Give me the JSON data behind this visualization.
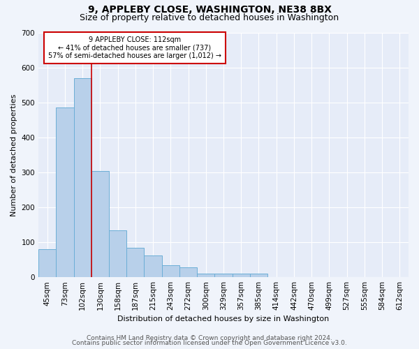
{
  "title1": "9, APPLEBY CLOSE, WASHINGTON, NE38 8BX",
  "title2": "Size of property relative to detached houses in Washington",
  "xlabel": "Distribution of detached houses by size in Washington",
  "ylabel": "Number of detached properties",
  "footnote1": "Contains HM Land Registry data © Crown copyright and database right 2024.",
  "footnote2": "Contains public sector information licensed under the Open Government Licence v3.0.",
  "bin_labels": [
    "45sqm",
    "73sqm",
    "102sqm",
    "130sqm",
    "158sqm",
    "187sqm",
    "215sqm",
    "243sqm",
    "272sqm",
    "300sqm",
    "329sqm",
    "357sqm",
    "385sqm",
    "414sqm",
    "442sqm",
    "470sqm",
    "499sqm",
    "527sqm",
    "555sqm",
    "584sqm",
    "612sqm"
  ],
  "bar_heights": [
    80,
    485,
    570,
    303,
    135,
    85,
    63,
    35,
    28,
    10,
    10,
    10,
    10,
    0,
    0,
    0,
    0,
    0,
    0,
    0,
    0
  ],
  "bar_color": "#b8d0ea",
  "bar_edge_color": "#6baed6",
  "red_line_color": "#cc0000",
  "red_line_bin": 2,
  "annotation_text": "9 APPLEBY CLOSE: 112sqm\n← 41% of detached houses are smaller (737)\n57% of semi-detached houses are larger (1,012) →",
  "annotation_box_color": "#ffffff",
  "annotation_box_edge": "#cc0000",
  "ylim": [
    0,
    700
  ],
  "yticks": [
    0,
    100,
    200,
    300,
    400,
    500,
    600,
    700
  ],
  "bg_color": "#f0f4fb",
  "plot_bg_color": "#e6ecf8",
  "grid_color": "#ffffff",
  "title1_fontsize": 10,
  "title2_fontsize": 9,
  "axis_fontsize": 7.5,
  "ylabel_fontsize": 8,
  "xlabel_fontsize": 8,
  "annotation_fontsize": 7,
  "footnote_fontsize": 6.5
}
